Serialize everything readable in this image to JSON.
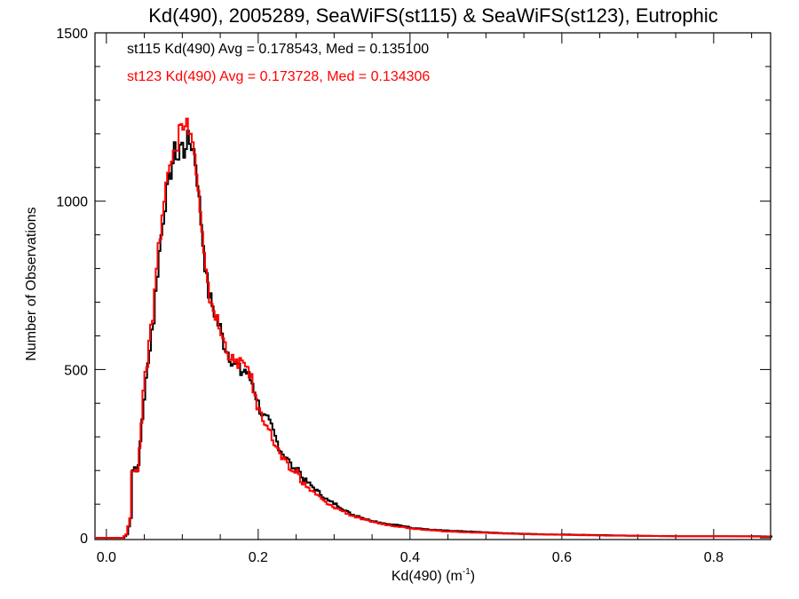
{
  "chart_data": {
    "type": "line",
    "title": "Kd(490), 2005289, SeaWiFS(st115) & SeaWiFS(st123), Eutrophic",
    "xlabel": "Kd(490) (m",
    "xlabel_sup": "-1",
    "xlabel_close": ")",
    "ylabel": "Number of Observations",
    "xlim": [
      -0.015,
      0.875
    ],
    "ylim": [
      -5,
      1500
    ],
    "x_ticks": [
      0.0,
      0.2,
      0.4,
      0.6,
      0.8
    ],
    "x_tick_labels": [
      "0.0",
      "0.2",
      "0.4",
      "0.6",
      "0.8"
    ],
    "y_ticks": [
      0,
      500,
      1000,
      1500
    ],
    "y_tick_labels": [
      "0",
      "500",
      "1000",
      "1500"
    ],
    "grid": false,
    "step": true,
    "series": [
      {
        "name": "st115",
        "color": "#000000",
        "legend": "st115 Kd(490) Avg = 0.178543, Med = 0.135100",
        "x": [
          -0.015,
          0.02,
          0.025,
          0.03,
          0.033,
          0.036,
          0.04,
          0.044,
          0.048,
          0.052,
          0.056,
          0.06,
          0.064,
          0.068,
          0.072,
          0.076,
          0.08,
          0.084,
          0.088,
          0.092,
          0.096,
          0.1,
          0.104,
          0.108,
          0.112,
          0.116,
          0.12,
          0.124,
          0.128,
          0.132,
          0.136,
          0.14,
          0.144,
          0.148,
          0.152,
          0.156,
          0.16,
          0.165,
          0.17,
          0.175,
          0.18,
          0.185,
          0.19,
          0.195,
          0.2,
          0.205,
          0.21,
          0.215,
          0.22,
          0.225,
          0.23,
          0.235,
          0.24,
          0.245,
          0.25,
          0.255,
          0.26,
          0.265,
          0.27,
          0.275,
          0.28,
          0.29,
          0.3,
          0.31,
          0.32,
          0.33,
          0.34,
          0.35,
          0.36,
          0.37,
          0.38,
          0.39,
          0.4,
          0.41,
          0.42,
          0.44,
          0.46,
          0.48,
          0.5,
          0.52,
          0.55,
          0.58,
          0.6,
          0.65,
          0.7,
          0.75,
          0.8,
          0.85,
          0.875
        ],
        "y": [
          0,
          0,
          10,
          60,
          230,
          200,
          210,
          330,
          430,
          500,
          600,
          650,
          770,
          860,
          940,
          1010,
          1060,
          1100,
          1160,
          1120,
          1180,
          1140,
          1190,
          1170,
          1160,
          1100,
          1000,
          900,
          800,
          730,
          700,
          670,
          640,
          620,
          580,
          560,
          540,
          520,
          510,
          490,
          500,
          480,
          460,
          420,
          380,
          360,
          350,
          330,
          300,
          270,
          250,
          240,
          220,
          200,
          210,
          180,
          170,
          160,
          150,
          140,
          130,
          110,
          100,
          85,
          70,
          65,
          55,
          50,
          45,
          40,
          38,
          35,
          30,
          28,
          25,
          22,
          20,
          18,
          16,
          14,
          12,
          10,
          10,
          8,
          6,
          5,
          5,
          5,
          4
        ],
        "x_offset": 0.0012
      },
      {
        "name": "st123",
        "color": "#ff0000",
        "legend": "st123 Kd(490) Avg = 0.173728, Med = 0.134306",
        "x": [
          -0.015,
          0.02,
          0.025,
          0.03,
          0.033,
          0.036,
          0.04,
          0.044,
          0.048,
          0.052,
          0.056,
          0.06,
          0.064,
          0.068,
          0.072,
          0.076,
          0.08,
          0.084,
          0.088,
          0.092,
          0.096,
          0.1,
          0.104,
          0.108,
          0.112,
          0.116,
          0.12,
          0.124,
          0.128,
          0.132,
          0.136,
          0.14,
          0.144,
          0.148,
          0.152,
          0.156,
          0.16,
          0.165,
          0.17,
          0.175,
          0.18,
          0.185,
          0.19,
          0.195,
          0.2,
          0.205,
          0.21,
          0.215,
          0.22,
          0.225,
          0.23,
          0.235,
          0.24,
          0.245,
          0.25,
          0.255,
          0.26,
          0.265,
          0.27,
          0.275,
          0.28,
          0.29,
          0.3,
          0.31,
          0.32,
          0.33,
          0.34,
          0.35,
          0.36,
          0.37,
          0.38,
          0.39,
          0.4,
          0.41,
          0.42,
          0.44,
          0.46,
          0.48,
          0.5,
          0.52,
          0.55,
          0.58,
          0.6,
          0.65,
          0.7,
          0.75,
          0.8,
          0.85,
          0.875
        ],
        "y": [
          0,
          0,
          10,
          60,
          220,
          190,
          205,
          320,
          440,
          510,
          610,
          660,
          790,
          870,
          950,
          1020,
          1080,
          1130,
          1180,
          1150,
          1270,
          1200,
          1230,
          1220,
          1180,
          1120,
          1020,
          920,
          820,
          740,
          710,
          680,
          650,
          620,
          590,
          570,
          550,
          525,
          515,
          530,
          500,
          510,
          470,
          410,
          380,
          350,
          345,
          310,
          280,
          260,
          235,
          225,
          205,
          195,
          200,
          170,
          160,
          145,
          140,
          130,
          120,
          100,
          90,
          80,
          68,
          60,
          52,
          48,
          42,
          38,
          35,
          32,
          28,
          26,
          24,
          20,
          18,
          16,
          15,
          13,
          11,
          10,
          9,
          7,
          6,
          5,
          5,
          4,
          4
        ],
        "x_offset": 0.0
      }
    ],
    "legend_placement": "top-left"
  }
}
